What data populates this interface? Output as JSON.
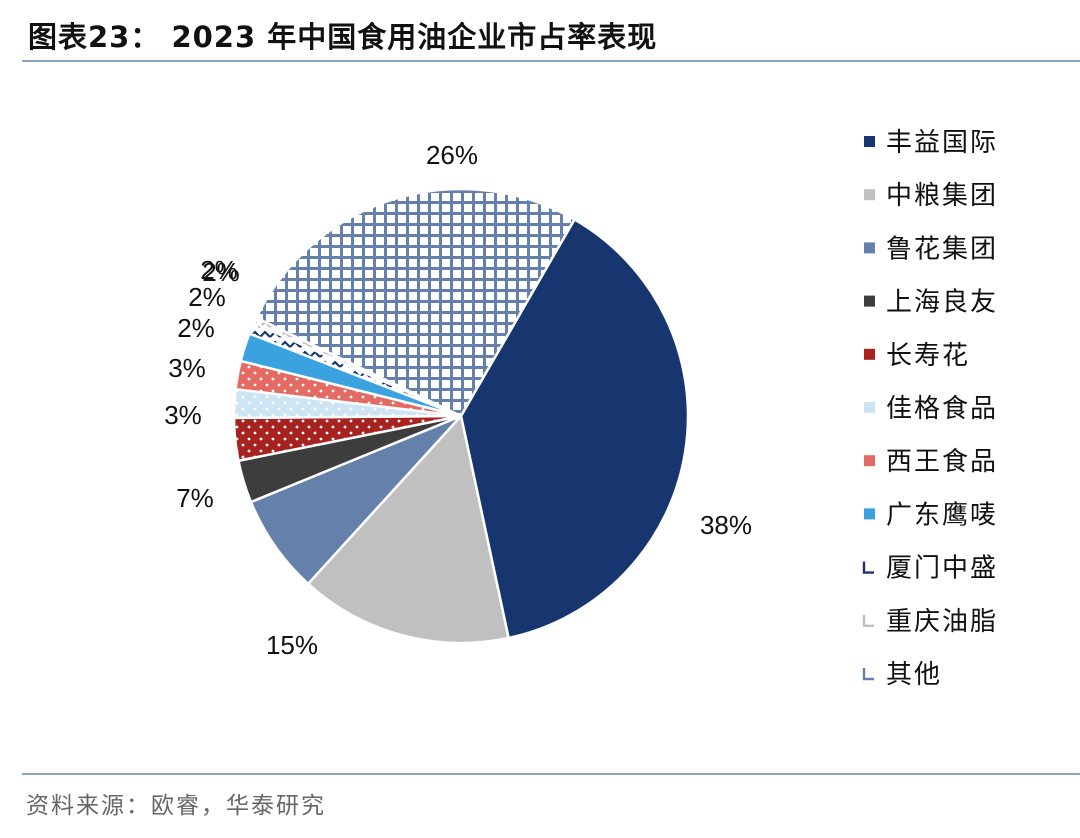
{
  "header": {
    "title": "图表23： 2023 年中国食用油企业市占率表现"
  },
  "footer": {
    "source": "资料来源：欧睿，华泰研究"
  },
  "colors": {
    "rule": "#8ea3c2"
  },
  "chart_data": {
    "type": "pie",
    "title": "",
    "start_angle_deg": 30,
    "direction": "clockwise",
    "legend_position": "right",
    "series": [
      {
        "name": "丰益国际",
        "value": 38,
        "label": "38%",
        "color": "#17366f",
        "pattern": "solid"
      },
      {
        "name": "中粮集团",
        "value": 15,
        "label": "15%",
        "color": "#c0c0c0",
        "pattern": "solid"
      },
      {
        "name": "鲁花集团",
        "value": 7,
        "label": "7%",
        "color": "#6581ab",
        "pattern": "solid"
      },
      {
        "name": "上海良友",
        "value": 3,
        "label": "3%",
        "color": "#3d3d3d",
        "pattern": "solid"
      },
      {
        "name": "长寿花",
        "value": 3,
        "label": "3%",
        "color": "#a8231f",
        "pattern": "dots"
      },
      {
        "name": "佳格食品",
        "value": 2,
        "label": "2%",
        "color": "#cde4f4",
        "pattern": "dots"
      },
      {
        "name": "西王食品",
        "value": 2,
        "label": "2%",
        "color": "#e36b63",
        "pattern": "dots"
      },
      {
        "name": "广东鹰唛",
        "value": 2,
        "label": "2%",
        "color": "#3aa2df",
        "pattern": "solid"
      },
      {
        "name": "厦门中盛",
        "value": 0.8,
        "label": "",
        "color": "#17366f",
        "pattern": "zigzag"
      },
      {
        "name": "重庆油脂",
        "value": 0.4,
        "label": "",
        "color": "#c0c0c0",
        "pattern": "zigzag"
      },
      {
        "name": "其他",
        "value": 26,
        "label": "26%",
        "color": "#6581ab",
        "pattern": "grid"
      }
    ],
    "extra_labels": [
      "2%"
    ]
  }
}
